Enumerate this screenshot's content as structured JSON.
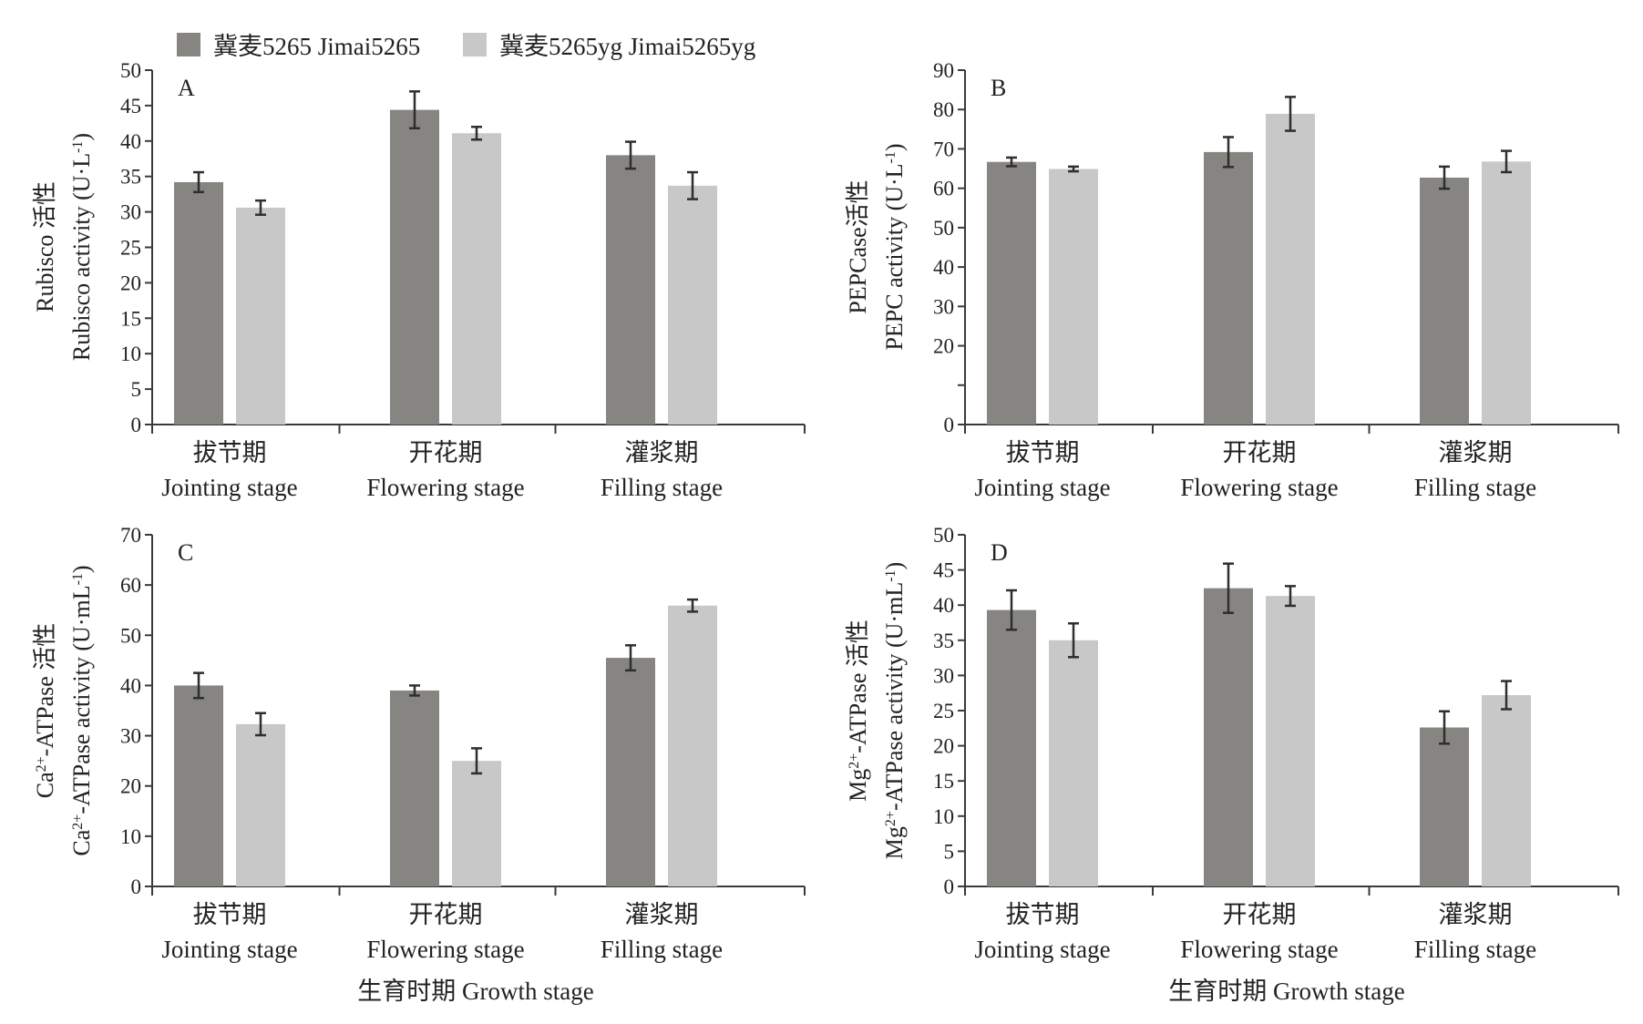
{
  "legend": [
    {
      "label": "冀麦5265 Jimai5265",
      "color": "#868581"
    },
    {
      "label": "冀麦5265yg  Jimai5265yg",
      "color": "#c8c8c8"
    }
  ],
  "growth_stage_labels": [
    "生育时期  Growth stage",
    "生育时期  Growth stage"
  ],
  "chart_data": [
    {
      "type": "bar",
      "panel": "A",
      "categories": [
        [
          "拔节期",
          "Jointing stage"
        ],
        [
          "开花期",
          "Flowering stage"
        ],
        [
          "灌浆期",
          "Filling stage"
        ]
      ],
      "series": [
        {
          "values": [
            34.2,
            44.4,
            38.0
          ],
          "errors": [
            1.4,
            2.6,
            1.9
          ]
        },
        {
          "values": [
            30.6,
            41.1,
            33.7
          ],
          "errors": [
            1.0,
            0.9,
            1.9
          ]
        }
      ],
      "ylim": [
        0,
        50
      ],
      "yticks": [
        0,
        5,
        10,
        15,
        20,
        25,
        30,
        35,
        40,
        45,
        50
      ],
      "ylabel_zh": "Rubisco 活性",
      "ylabel_en": "Rubisco activity (U·L",
      "ylabel_sup": "-1",
      "ylabel_end": ")"
    },
    {
      "type": "bar",
      "panel": "B",
      "categories": [
        [
          "拔节期",
          "Jointing stage"
        ],
        [
          "开花期",
          "Flowering stage"
        ],
        [
          "灌浆期",
          "Filling stage"
        ]
      ],
      "series": [
        {
          "values": [
            66.7,
            69.2,
            62.7
          ],
          "errors": [
            1.1,
            3.8,
            2.8
          ]
        },
        {
          "values": [
            64.9,
            78.9,
            66.8
          ],
          "errors": [
            0.6,
            4.3,
            2.7
          ]
        }
      ],
      "ylim": [
        0,
        90
      ],
      "yticks": [
        0,
        20,
        30,
        40,
        50,
        60,
        70,
        80,
        90
      ],
      "axis_break": "between 0 and 20 (unlabelled tick at 10)",
      "ylabel_zh": "PEPCase活性",
      "ylabel_en": "PEPC activity (U·L",
      "ylabel_sup": "-1",
      "ylabel_end": ")"
    },
    {
      "type": "bar",
      "panel": "C",
      "categories": [
        [
          "拔节期",
          "Jointing stage"
        ],
        [
          "开花期",
          "Flowering stage"
        ],
        [
          "灌浆期",
          "Filling stage"
        ]
      ],
      "series": [
        {
          "values": [
            40.0,
            39.0,
            45.5
          ],
          "errors": [
            2.5,
            1.0,
            2.5
          ]
        },
        {
          "values": [
            32.3,
            25.0,
            55.9
          ],
          "errors": [
            2.2,
            2.5,
            1.2
          ]
        }
      ],
      "ylim": [
        0,
        70
      ],
      "yticks": [
        0,
        10,
        20,
        30,
        40,
        50,
        60,
        70
      ],
      "ylabel_zh_pre": "Ca",
      "ylabel_zh_sup": "2+",
      "ylabel_zh_post": "-ATPase 活性",
      "ylabel_en_pre": "Ca",
      "ylabel_en_sup": "2+",
      "ylabel_en_post": "-ATPase activity (U·mL",
      "ylabel_sup": "-1",
      "ylabel_end": ")"
    },
    {
      "type": "bar",
      "panel": "D",
      "categories": [
        [
          "拔节期",
          "Jointing stage"
        ],
        [
          "开花期",
          "Flowering stage"
        ],
        [
          "灌浆期",
          "Filling stage"
        ]
      ],
      "series": [
        {
          "values": [
            39.3,
            42.4,
            22.6
          ],
          "errors": [
            2.8,
            3.5,
            2.3
          ]
        },
        {
          "values": [
            35.0,
            41.3,
            27.2
          ],
          "errors": [
            2.4,
            1.4,
            2.0
          ]
        }
      ],
      "ylim": [
        0,
        50
      ],
      "yticks": [
        0,
        5,
        10,
        15,
        20,
        25,
        30,
        35,
        40,
        45,
        50
      ],
      "ylabel_zh_pre": "Mg",
      "ylabel_zh_sup": "2+",
      "ylabel_zh_post": "-ATPase 活性",
      "ylabel_en_pre": "Mg",
      "ylabel_en_sup": "2+",
      "ylabel_en_post": "-ATPase activity (U·mL",
      "ylabel_sup": "-1",
      "ylabel_end": ")"
    }
  ]
}
